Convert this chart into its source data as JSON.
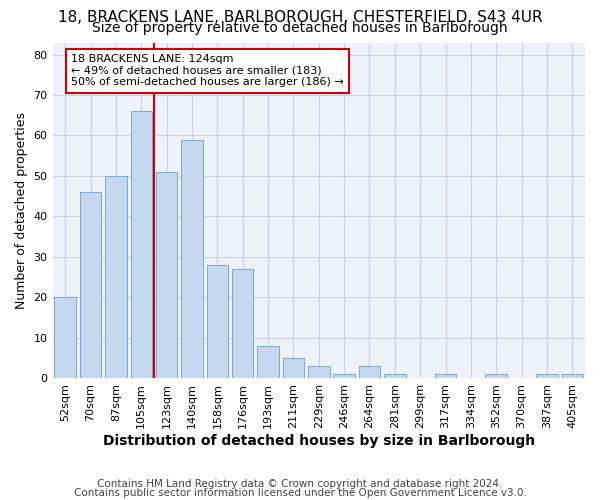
{
  "title_line1": "18, BRACKENS LANE, BARLBOROUGH, CHESTERFIELD, S43 4UR",
  "title_line2": "Size of property relative to detached houses in Barlborough",
  "xlabel": "Distribution of detached houses by size in Barlborough",
  "ylabel": "Number of detached properties",
  "categories": [
    "52sqm",
    "70sqm",
    "87sqm",
    "105sqm",
    "123sqm",
    "140sqm",
    "158sqm",
    "176sqm",
    "193sqm",
    "211sqm",
    "229sqm",
    "246sqm",
    "264sqm",
    "281sqm",
    "299sqm",
    "317sqm",
    "334sqm",
    "352sqm",
    "370sqm",
    "387sqm",
    "405sqm"
  ],
  "values": [
    20,
    46,
    50,
    66,
    51,
    59,
    28,
    27,
    8,
    5,
    3,
    1,
    3,
    1,
    0,
    1,
    0,
    1,
    0,
    1,
    1
  ],
  "bar_color": "#c5d8f0",
  "bar_edge_color": "#7aaad0",
  "vline_color": "#cc0000",
  "annotation_text": "18 BRACKENS LANE: 124sqm\n← 49% of detached houses are smaller (183)\n50% of semi-detached houses are larger (186) →",
  "annotation_box_color": "#ffffff",
  "annotation_box_edge": "#cc0000",
  "ylim": [
    0,
    83
  ],
  "yticks": [
    0,
    10,
    20,
    30,
    40,
    50,
    60,
    70,
    80
  ],
  "footer_line1": "Contains HM Land Registry data © Crown copyright and database right 2024.",
  "footer_line2": "Contains public sector information licensed under the Open Government Licence v3.0.",
  "bg_color": "#eef2fb",
  "grid_color": "#c8d0e8",
  "title_fontsize": 11,
  "subtitle_fontsize": 10,
  "ylabel_fontsize": 9,
  "xlabel_fontsize": 10,
  "tick_fontsize": 8,
  "annotation_fontsize": 8,
  "footer_fontsize": 7.5
}
